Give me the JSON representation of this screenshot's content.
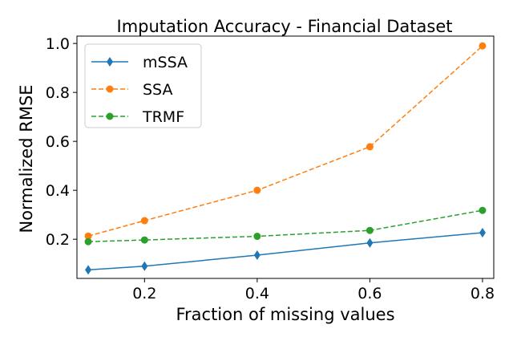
{
  "chart_data": {
    "type": "line",
    "title": "Imputation Accuracy - Financial Dataset",
    "xlabel": "Fraction of missing values",
    "ylabel": "Normalized RMSE",
    "x": [
      0.1,
      0.2,
      0.4,
      0.6,
      0.8
    ],
    "xlim": [
      0.08,
      0.82
    ],
    "ylim": [
      0.04,
      1.03
    ],
    "xticks": [
      0.2,
      0.4,
      0.6,
      0.8
    ],
    "xtick_labels": [
      "0.2",
      "0.4",
      "0.6",
      "0.8"
    ],
    "yticks": [
      0.2,
      0.4,
      0.6,
      0.8,
      1.0
    ],
    "ytick_labels": [
      "0.2",
      "0.4",
      "0.6",
      "0.8",
      "1.0"
    ],
    "grid": false,
    "legend_position": "top-left",
    "series": [
      {
        "name": "mSSA",
        "color": "#1f77b4",
        "marker": "diamond",
        "linestyle": "solid",
        "values": [
          0.075,
          0.09,
          0.135,
          0.185,
          0.227
        ]
      },
      {
        "name": "SSA",
        "color": "#ff7f0e",
        "marker": "circle",
        "linestyle": "dashed",
        "values": [
          0.213,
          0.276,
          0.4,
          0.578,
          0.99
        ]
      },
      {
        "name": "TRMF",
        "color": "#2ca02c",
        "marker": "circle",
        "linestyle": "dashed",
        "values": [
          0.19,
          0.197,
          0.212,
          0.236,
          0.318
        ]
      }
    ]
  }
}
